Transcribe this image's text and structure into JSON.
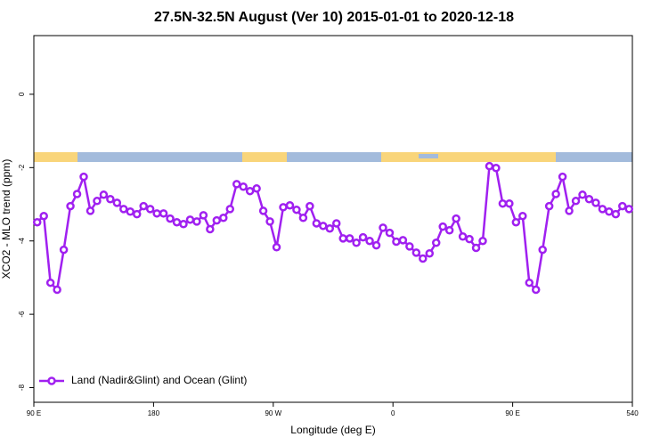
{
  "chart_data": {
    "type": "line",
    "title": "27.5N-32.5N August (Ver 10)   2015-01-01 to 2020-12-18",
    "x_label": "Longitude (deg E)",
    "y_label": "XCO2 - MLO trend (ppm)",
    "x": [
      92.5,
      97.5,
      102.5,
      107.5,
      112.5,
      117.5,
      122.5,
      127.5,
      132.5,
      137.5,
      142.5,
      147.5,
      152.5,
      157.5,
      162.5,
      167.5,
      172.5,
      177.5,
      182.5,
      187.5,
      192.5,
      197.5,
      202.5,
      207.5,
      212.5,
      217.5,
      222.5,
      227.5,
      232.5,
      237.5,
      242.5,
      247.5,
      252.5,
      257.5,
      262.5,
      267.5,
      272.5,
      277.5,
      282.5,
      287.5,
      292.5,
      297.5,
      302.5,
      307.5,
      312.5,
      317.5,
      322.5,
      327.5,
      332.5,
      337.5,
      342.5,
      347.5,
      352.5,
      357.5,
      362.5,
      367.5,
      372.5,
      377.5,
      382.5,
      387.5,
      392.5,
      397.5,
      402.5,
      407.5,
      412.5,
      417.5,
      422.5,
      427.5,
      432.5,
      437.5,
      442.5,
      447.5,
      452.5,
      457.5,
      462.5,
      467.5,
      472.5,
      477.5,
      482.5,
      487.5,
      492.5,
      497.5,
      502.5,
      507.5,
      512.5,
      517.5,
      522.5,
      527.5,
      532.5,
      537.5
    ],
    "series": [
      {
        "name": "Land (Nadir&Glint) and Ocean (Glint)",
        "color": "#a020f0",
        "values": [
          -3.49,
          -3.32,
          -5.14,
          -5.33,
          -4.24,
          -3.05,
          -2.72,
          -2.25,
          -3.18,
          -2.91,
          -2.74,
          -2.86,
          -2.96,
          -3.13,
          -3.2,
          -3.27,
          -3.05,
          -3.13,
          -3.25,
          -3.25,
          -3.39,
          -3.49,
          -3.54,
          -3.42,
          -3.47,
          -3.3,
          -3.68,
          -3.44,
          -3.37,
          -3.13,
          -2.45,
          -2.52,
          -2.64,
          -2.57,
          -3.18,
          -3.47,
          -4.17,
          -3.08,
          -3.03,
          -3.15,
          -3.37,
          -3.05,
          -3.52,
          -3.59,
          -3.66,
          -3.52,
          -3.93,
          -3.93,
          -4.05,
          -3.9,
          -4.0,
          -4.12,
          -3.64,
          -3.78,
          -4.02,
          -3.98,
          -4.15,
          -4.32,
          -4.48,
          -4.34,
          -4.05,
          -3.61,
          -3.71,
          -3.39,
          -3.88,
          -3.95,
          -4.19,
          -4.0,
          -1.96,
          -2.01,
          -2.98,
          -2.98,
          -3.49,
          -3.32,
          -5.14,
          -5.33,
          -4.24,
          -3.05,
          -2.72,
          -2.25,
          -3.18,
          -2.91,
          -2.74,
          -2.86,
          -2.96,
          -3.13,
          -3.2,
          -3.27,
          -3.05,
          -3.13
        ]
      }
    ],
    "xlim": [
      90,
      540
    ],
    "xticks": [
      {
        "value": 90,
        "label": "90 E"
      },
      180,
      {
        "value": 270,
        "label": "90 W"
      },
      {
        "value": 360,
        "label": "0"
      },
      {
        "value": 450,
        "label": "90 E"
      },
      540
    ],
    "ylim": [
      -8.4,
      1.6
    ],
    "yticks": [
      0,
      -2,
      -4,
      -6,
      -8
    ],
    "legend": "lower left"
  }
}
